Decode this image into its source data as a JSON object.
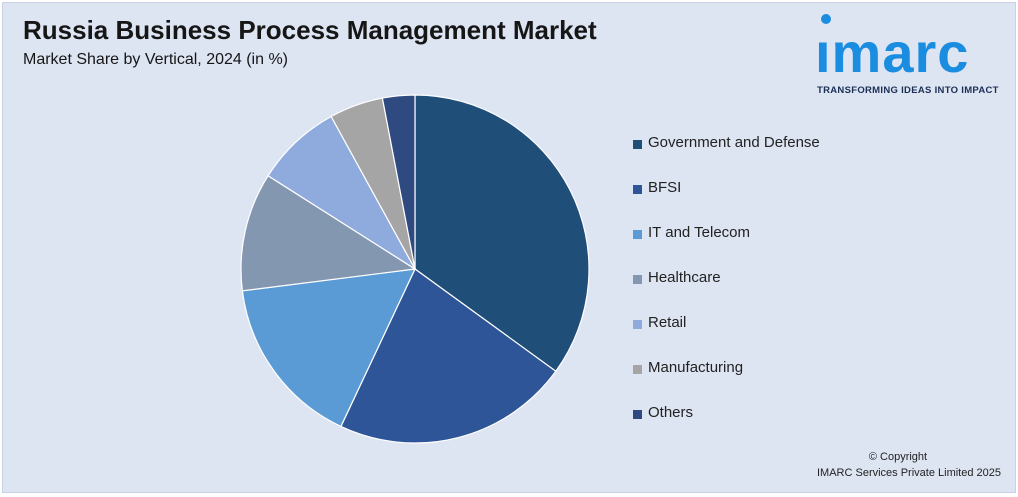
{
  "header": {
    "title": "Russia Business Process Management Market",
    "subtitle": "Market Share by Vertical, 2024 (in %)"
  },
  "logo": {
    "word": "ımarc",
    "tagline": "TRANSFORMING IDEAS INTO IMPACT",
    "color": "#1a8de0"
  },
  "chart_data": {
    "type": "pie",
    "title": "Russia Business Process Management Market",
    "subtitle": "Market Share by Vertical, 2024 (in %)",
    "legend_position": "right",
    "start_angle_deg": 0,
    "direction": "clockwise",
    "slices": [
      {
        "label": "Government and Defense",
        "value": 35,
        "color": "#1f4e79"
      },
      {
        "label": "BFSI",
        "value": 22,
        "color": "#2e5597"
      },
      {
        "label": "IT and Telecom",
        "value": 16,
        "color": "#5b9bd5"
      },
      {
        "label": "Healthcare",
        "value": 11,
        "color": "#8497b0"
      },
      {
        "label": "Retail",
        "value": 8,
        "color": "#8faadc"
      },
      {
        "label": "Manufacturing",
        "value": 5,
        "color": "#a5a5a5"
      },
      {
        "label": "Others",
        "value": 3,
        "color": "#2f4a80"
      }
    ]
  },
  "footer": {
    "copyright_line1": "© Copyright",
    "copyright_line2": "IMARC Services Private Limited 2025"
  }
}
